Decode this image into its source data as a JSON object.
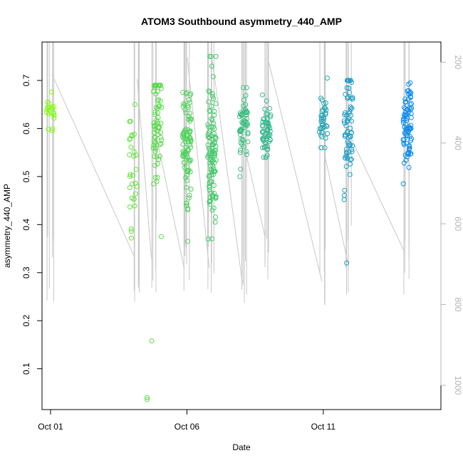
{
  "chart_data": {
    "type": "scatter",
    "title": "ATOM3 Southbound asymmetry_440_AMP",
    "xlabel": "Date",
    "ylabel": "asymmetry_440_AMP",
    "xlim": [
      "2015-09-30T16:30",
      "2015-10-15T07:30"
    ],
    "ylim": [
      0.015,
      0.78
    ],
    "x_ticks": [
      {
        "date": "2015-10-01",
        "label": "Oct 01"
      },
      {
        "date": "2015-10-06",
        "label": "Oct 06"
      },
      {
        "date": "2015-10-11",
        "label": "Oct 11"
      }
    ],
    "y_ticks": [
      0.1,
      0.2,
      0.3,
      0.4,
      0.5,
      0.6,
      0.7
    ],
    "y2_axis": {
      "description": "secondary depth axis (grey), reversed",
      "ticks": [
        200,
        400,
        600,
        800,
        1000
      ],
      "lim": [
        1060,
        150
      ]
    },
    "color_scale": {
      "start": "#7fff00",
      "end": "#0080ff",
      "note": "point color varies with time"
    },
    "grid": false,
    "series": [
      {
        "casts": [
          {
            "date": "2015-10-01T00:00",
            "n": 20,
            "mean": 0.635,
            "min": 0.595,
            "max": 0.676
          },
          {
            "date": "2015-10-04T01:00",
            "n": 30,
            "mean": 0.505,
            "min": 0.372,
            "max": 0.65
          },
          {
            "date": "2015-10-04T22:00",
            "n": 70,
            "mean": 0.61,
            "min": 0.375,
            "max": 0.69
          },
          {
            "date": "2015-10-06T00:00",
            "n": 90,
            "mean": 0.56,
            "min": 0.365,
            "max": 0.675
          },
          {
            "date": "2015-10-06T22:00",
            "n": 110,
            "mean": 0.55,
            "min": 0.37,
            "max": 0.75
          },
          {
            "date": "2015-10-08T02:00",
            "n": 60,
            "mean": 0.605,
            "min": 0.5,
            "max": 0.685
          },
          {
            "date": "2015-10-08T22:00",
            "n": 60,
            "mean": 0.59,
            "min": 0.54,
            "max": 0.67
          },
          {
            "date": "2015-10-11T00:00",
            "n": 40,
            "mean": 0.615,
            "min": 0.56,
            "max": 0.705
          },
          {
            "date": "2015-10-11T22:00",
            "n": 70,
            "mean": 0.585,
            "min": 0.32,
            "max": 0.7
          },
          {
            "date": "2015-10-14T02:00",
            "n": 80,
            "mean": 0.605,
            "min": 0.485,
            "max": 0.695
          }
        ],
        "outliers": [
          {
            "date": "2015-10-04T17:00",
            "y": 0.158
          },
          {
            "date": "2015-10-04T13:00",
            "y": 0.04
          },
          {
            "date": "2015-10-04T13:00",
            "y": 0.036
          }
        ]
      }
    ],
    "depth_profiles": [
      {
        "date": "2015-10-01T00:00",
        "min_depth": 150,
        "max_depth": 800
      },
      {
        "date": "2015-10-04T03:00",
        "min_depth": 150,
        "max_depth": 800
      },
      {
        "date": "2015-10-04T18:00",
        "min_depth": 150,
        "max_depth": 780
      },
      {
        "date": "2015-10-05T23:00",
        "min_depth": 150,
        "max_depth": 800
      },
      {
        "date": "2015-10-06T21:00",
        "min_depth": 150,
        "max_depth": 790
      },
      {
        "date": "2015-10-08T02:00",
        "min_depth": 150,
        "max_depth": 810
      },
      {
        "date": "2015-10-08T22:00",
        "min_depth": 150,
        "max_depth": 780
      },
      {
        "date": "2015-10-11T00:00",
        "min_depth": 150,
        "max_depth": 810
      },
      {
        "date": "2015-10-11T23:00",
        "min_depth": 150,
        "max_depth": 800
      },
      {
        "date": "2015-10-14T01:00",
        "min_depth": 150,
        "max_depth": 780
      }
    ]
  }
}
